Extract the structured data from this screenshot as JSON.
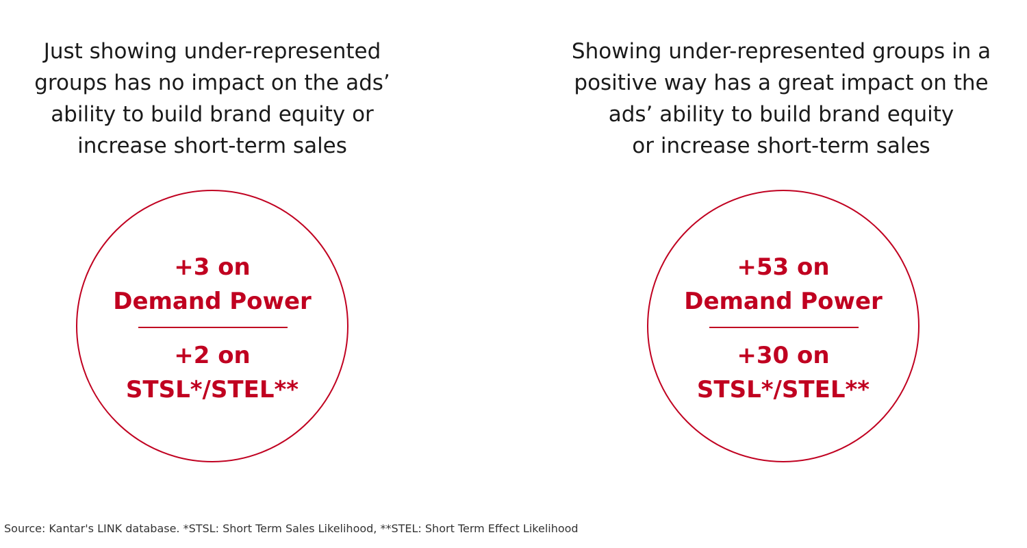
{
  "accent_color": "#c00020",
  "panels": [
    {
      "heading_lines": [
        "Just showing under-represented",
        "groups has no impact on the ads’",
        "ability to build brand equity or",
        "increase short-term sales"
      ],
      "demand_power": [
        "+3 on",
        "Demand Power"
      ],
      "short_term": [
        "+2 on",
        "STSL*/STEL**"
      ]
    },
    {
      "heading_lines": [
        "Showing under-represented groups in a",
        "positive way has a great impact on the",
        "ads’ ability to build brand equity",
        "or increase short-term sales"
      ],
      "demand_power": [
        "+53 on",
        "Demand Power"
      ],
      "short_term": [
        "+30 on",
        "STSL*/STEL**"
      ]
    }
  ],
  "source": "Source: Kantar's LINK database. *STSL: Short Term Sales Likelihood, **STEL: Short Term Effect Likelihood"
}
